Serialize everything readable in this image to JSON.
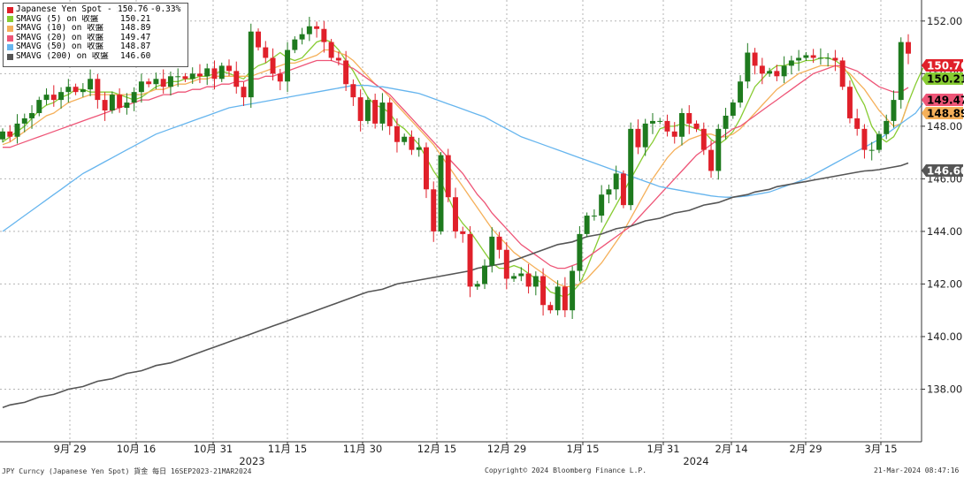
{
  "legend": {
    "items": [
      {
        "name": "Japanese Yen Spot - 最新價",
        "value": "150.76",
        "change": "-0.33%",
        "color": "#e0202a"
      },
      {
        "name": "SMAVG (5)  on 收盤",
        "value": "150.21",
        "color": "#88cc33"
      },
      {
        "name": "SMAVG (10)  on 收盤",
        "value": "148.89",
        "color": "#f5b05a"
      },
      {
        "name": "SMAVG (20)  on 收盤",
        "value": "149.47",
        "color": "#ee5577"
      },
      {
        "name": "SMAVG (50)  on 收盤",
        "value": "148.87",
        "color": "#66b5ee"
      },
      {
        "name": "SMAVG (200)  on 收盤",
        "value": "146.60",
        "color": "#555555"
      }
    ]
  },
  "footer": {
    "left": "JPY Curncy (Japanese Yen Spot) 貨金  每日 16SEP2023-21MAR2024",
    "center": "Copyright© 2024 Bloomberg Finance L.P.",
    "right": "21-Mar-2024 08:47:16"
  },
  "colors": {
    "up": "#1e7a1e",
    "down": "#e0202a",
    "grid": "#b5b5b5"
  },
  "chart_data": {
    "type": "candlestick",
    "x_tick_labels": [
      {
        "label": "9月 29",
        "year": ""
      },
      {
        "label": "10月 16",
        "year": ""
      },
      {
        "label": "10月 31",
        "year": ""
      },
      {
        "label": "11月 15",
        "year": "2023"
      },
      {
        "label": "11月 30",
        "year": ""
      },
      {
        "label": "12月 15",
        "year": ""
      },
      {
        "label": "12月 29",
        "year": ""
      },
      {
        "label": "1月 15",
        "year": ""
      },
      {
        "label": "1月 31",
        "year": ""
      },
      {
        "label": "2月 14",
        "year": "2024"
      },
      {
        "label": "2月 29",
        "year": ""
      },
      {
        "label": "3月 15",
        "year": ""
      }
    ],
    "y_ticks": [
      "152.00",
      "150.00",
      "148.00",
      "146.00",
      "144.00",
      "142.00",
      "140.00",
      "138.00"
    ],
    "ylim": [
      136.0,
      152.8
    ],
    "grid": true,
    "legend_position": "top-left",
    "last_value_badges": [
      {
        "value": "150.76",
        "series": "Japanese Yen Spot - 最新價"
      },
      {
        "value": "150.21",
        "series": "SMAVG (5)"
      },
      {
        "value": "149.47",
        "series": "SMAVG (20)"
      },
      {
        "value": "148.89",
        "series": "SMAVG (10)"
      },
      {
        "value": "146.60",
        "series": "SMAVG (200)"
      }
    ],
    "closes": [
      147.8,
      147.6,
      148.1,
      148.3,
      148.5,
      149.0,
      149.2,
      149.0,
      149.3,
      149.5,
      149.3,
      149.4,
      149.8,
      149.0,
      148.6,
      149.2,
      148.7,
      148.9,
      149.3,
      149.7,
      149.6,
      149.8,
      149.5,
      149.9,
      149.9,
      149.8,
      150.0,
      149.9,
      150.2,
      149.8,
      150.3,
      150.1,
      149.5,
      149.1,
      151.6,
      151.0,
      150.6,
      150.0,
      149.7,
      150.9,
      151.3,
      151.5,
      151.8,
      151.7,
      151.2,
      150.6,
      150.5,
      149.6,
      149.1,
      148.2,
      149.0,
      148.1,
      148.9,
      148.0,
      147.4,
      147.6,
      147.1,
      147.2,
      145.6,
      144.0,
      146.9,
      145.3,
      144.0,
      143.9,
      141.9,
      142.0,
      142.7,
      143.8,
      143.3,
      142.2,
      142.3,
      142.4,
      141.9,
      142.3,
      141.2,
      141.0,
      141.9,
      141.0,
      142.5,
      143.9,
      144.6,
      144.6,
      145.4,
      145.6,
      146.2,
      145.0,
      147.9,
      147.2,
      148.1,
      148.2,
      148.2,
      147.8,
      147.6,
      148.5,
      148.1,
      147.9,
      147.1,
      146.3,
      147.9,
      148.4,
      148.9,
      149.7,
      150.8,
      150.3,
      150.0,
      150.1,
      149.9,
      150.3,
      150.5,
      150.6,
      150.7,
      150.6,
      150.6,
      150.6,
      150.5,
      149.5,
      148.3,
      147.9,
      147.1,
      147.1,
      147.7,
      148.2,
      149.0,
      151.2,
      150.76
    ],
    "series": [
      {
        "name": "SMAVG (5)",
        "values": [
          147.4,
          147.6,
          147.8,
          148.0,
          148.3,
          148.6,
          148.8,
          148.9,
          149.1,
          149.2,
          149.4,
          149.4,
          149.3,
          149.3,
          149.3,
          149.3,
          149.2,
          149.1,
          149.0,
          149.1,
          149.3,
          149.5,
          149.6,
          149.7,
          149.7,
          149.8,
          149.8,
          149.9,
          149.9,
          150.0,
          150.1,
          150.0,
          149.9,
          149.8,
          150.1,
          150.3,
          150.4,
          150.6,
          150.8,
          150.6,
          150.5,
          150.6,
          150.9,
          151.2,
          151.3,
          151.2,
          150.9,
          150.5,
          150.1,
          149.6,
          149.1,
          148.8,
          148.7,
          148.5,
          148.1,
          147.9,
          147.6,
          147.3,
          146.8,
          146.3,
          145.9,
          145.3,
          144.7,
          144.3,
          144.0,
          143.6,
          143.2,
          142.8,
          142.6,
          142.6,
          142.7,
          142.6,
          142.4,
          142.2,
          142.0,
          141.7,
          141.6,
          141.5,
          141.7,
          142.0,
          142.6,
          143.3,
          144.0,
          144.5,
          145.0,
          145.5,
          146.0,
          146.5,
          147.0,
          147.4,
          147.9,
          148.0,
          148.0,
          148.1,
          148.0,
          147.9,
          147.8,
          147.5,
          147.3,
          147.5,
          147.8,
          148.3,
          148.9,
          149.5,
          149.8,
          150.1,
          150.3,
          150.3,
          150.4,
          150.4,
          150.5,
          150.5,
          150.6,
          150.6,
          150.5,
          150.3,
          149.9,
          149.3,
          148.8,
          148.0,
          147.6,
          147.4,
          147.6,
          148.1,
          148.9,
          149.6,
          150.21
        ]
      },
      {
        "name": "SMAVG (10)",
        "values": [
          147.3,
          147.4,
          147.6,
          147.8,
          148.0,
          148.2,
          148.4,
          148.5,
          148.7,
          148.9,
          149.0,
          149.1,
          149.2,
          149.2,
          149.2,
          149.2,
          149.2,
          149.2,
          149.2,
          149.2,
          149.3,
          149.4,
          149.4,
          149.5,
          149.6,
          149.6,
          149.7,
          149.8,
          149.8,
          149.9,
          149.9,
          149.9,
          149.9,
          149.9,
          149.9,
          150.0,
          150.1,
          150.2,
          150.3,
          150.4,
          150.4,
          150.5,
          150.6,
          150.7,
          150.9,
          150.9,
          150.8,
          150.7,
          150.5,
          150.2,
          149.9,
          149.6,
          149.4,
          149.1,
          148.8,
          148.5,
          148.2,
          147.9,
          147.6,
          147.3,
          146.9,
          146.5,
          146.1,
          145.7,
          145.3,
          144.9,
          144.5,
          144.1,
          143.8,
          143.5,
          143.2,
          143.0,
          142.8,
          142.6,
          142.4,
          142.2,
          142.0,
          141.9,
          141.9,
          142.0,
          142.2,
          142.5,
          142.8,
          143.2,
          143.6,
          144.0,
          144.5,
          145.0,
          145.5,
          146.0,
          146.4,
          146.8,
          147.1,
          147.3,
          147.5,
          147.6,
          147.7,
          147.7,
          147.6,
          147.6,
          147.7,
          147.9,
          148.2,
          148.5,
          148.8,
          149.1,
          149.4,
          149.6,
          149.8,
          150.0,
          150.1,
          150.2,
          150.3,
          150.3,
          150.3,
          150.2,
          150.0,
          149.7,
          149.4,
          149.0,
          148.6,
          148.3,
          148.0,
          148.1,
          148.89
        ]
      },
      {
        "name": "SMAVG (20)",
        "values": [
          147.2,
          147.2,
          147.3,
          147.4,
          147.5,
          147.6,
          147.7,
          147.8,
          147.9,
          148.0,
          148.1,
          148.2,
          148.3,
          148.4,
          148.5,
          148.6,
          148.7,
          148.8,
          148.9,
          149.0,
          149.0,
          149.1,
          149.2,
          149.2,
          149.3,
          149.3,
          149.4,
          149.4,
          149.5,
          149.5,
          149.6,
          149.6,
          149.7,
          149.7,
          149.8,
          149.8,
          149.9,
          149.9,
          150.0,
          150.1,
          150.2,
          150.3,
          150.4,
          150.5,
          150.5,
          150.5,
          150.4,
          150.3,
          150.2,
          150.0,
          149.8,
          149.6,
          149.4,
          149.2,
          148.9,
          148.6,
          148.3,
          148.0,
          147.7,
          147.4,
          147.1,
          146.8,
          146.5,
          146.2,
          145.8,
          145.4,
          145.1,
          144.7,
          144.4,
          144.1,
          143.8,
          143.5,
          143.3,
          143.1,
          142.9,
          142.7,
          142.6,
          142.6,
          142.7,
          142.8,
          143.0,
          143.2,
          143.4,
          143.6,
          143.8,
          144.0,
          144.2,
          144.5,
          144.8,
          145.1,
          145.4,
          145.7,
          146.0,
          146.3,
          146.6,
          146.9,
          147.1,
          147.3,
          147.5,
          147.7,
          147.9,
          148.0,
          148.2,
          148.4,
          148.6,
          148.8,
          149.0,
          149.2,
          149.4,
          149.6,
          149.8,
          150.0,
          150.1,
          150.2,
          150.3,
          150.3,
          150.2,
          150.1,
          149.9,
          149.7,
          149.5,
          149.4,
          149.3,
          149.3,
          149.47
        ]
      },
      {
        "name": "SMAVG (50)",
        "values": [
          144.0,
          144.2,
          144.4,
          144.6,
          144.8,
          145.0,
          145.2,
          145.4,
          145.6,
          145.8,
          146.0,
          146.2,
          146.35,
          146.5,
          146.65,
          146.8,
          146.95,
          147.1,
          147.25,
          147.4,
          147.55,
          147.7,
          147.8,
          147.9,
          148.0,
          148.1,
          148.2,
          148.3,
          148.4,
          148.5,
          148.6,
          148.7,
          148.75,
          148.8,
          148.85,
          148.9,
          148.95,
          149.0,
          149.05,
          149.1,
          149.15,
          149.2,
          149.25,
          149.3,
          149.35,
          149.4,
          149.45,
          149.5,
          149.55,
          149.55,
          149.55,
          149.5,
          149.5,
          149.45,
          149.4,
          149.35,
          149.3,
          149.25,
          149.15,
          149.05,
          148.95,
          148.85,
          148.75,
          148.65,
          148.55,
          148.45,
          148.35,
          148.2,
          148.05,
          147.9,
          147.75,
          147.6,
          147.5,
          147.4,
          147.3,
          147.2,
          147.1,
          147.0,
          146.9,
          146.8,
          146.7,
          146.6,
          146.5,
          146.4,
          146.3,
          146.2,
          146.1,
          146.0,
          145.9,
          145.8,
          145.7,
          145.65,
          145.6,
          145.55,
          145.5,
          145.45,
          145.4,
          145.35,
          145.32,
          145.3,
          145.3,
          145.32,
          145.35,
          145.4,
          145.45,
          145.5,
          145.6,
          145.7,
          145.8,
          145.9,
          146.0,
          146.15,
          146.3,
          146.45,
          146.6,
          146.75,
          146.9,
          147.05,
          147.2,
          147.35,
          147.5,
          147.7,
          147.9,
          148.1,
          148.3,
          148.5,
          148.87
        ]
      },
      {
        "name": "SMAVG (200)",
        "values": [
          137.3,
          137.4,
          137.45,
          137.5,
          137.6,
          137.7,
          137.75,
          137.8,
          137.9,
          138.0,
          138.05,
          138.1,
          138.2,
          138.3,
          138.35,
          138.4,
          138.5,
          138.6,
          138.65,
          138.7,
          138.8,
          138.9,
          138.95,
          139.0,
          139.1,
          139.2,
          139.3,
          139.4,
          139.5,
          139.6,
          139.7,
          139.8,
          139.9,
          140.0,
          140.1,
          140.2,
          140.3,
          140.4,
          140.5,
          140.6,
          140.7,
          140.8,
          140.9,
          141.0,
          141.1,
          141.2,
          141.3,
          141.4,
          141.5,
          141.6,
          141.7,
          141.75,
          141.8,
          141.9,
          142.0,
          142.05,
          142.1,
          142.15,
          142.2,
          142.25,
          142.3,
          142.35,
          142.4,
          142.45,
          142.5,
          142.6,
          142.65,
          142.7,
          142.75,
          142.8,
          142.9,
          143.0,
          143.1,
          143.2,
          143.3,
          143.4,
          143.5,
          143.55,
          143.6,
          143.7,
          143.8,
          143.85,
          143.9,
          144.0,
          144.1,
          144.15,
          144.2,
          144.3,
          144.4,
          144.45,
          144.5,
          144.6,
          144.7,
          144.75,
          144.8,
          144.9,
          145.0,
          145.05,
          145.1,
          145.2,
          145.3,
          145.35,
          145.4,
          145.5,
          145.55,
          145.6,
          145.7,
          145.75,
          145.8,
          145.85,
          145.9,
          145.95,
          146.0,
          146.05,
          146.1,
          146.15,
          146.2,
          146.25,
          146.3,
          146.32,
          146.35,
          146.4,
          146.45,
          146.5,
          146.6
        ]
      }
    ]
  }
}
